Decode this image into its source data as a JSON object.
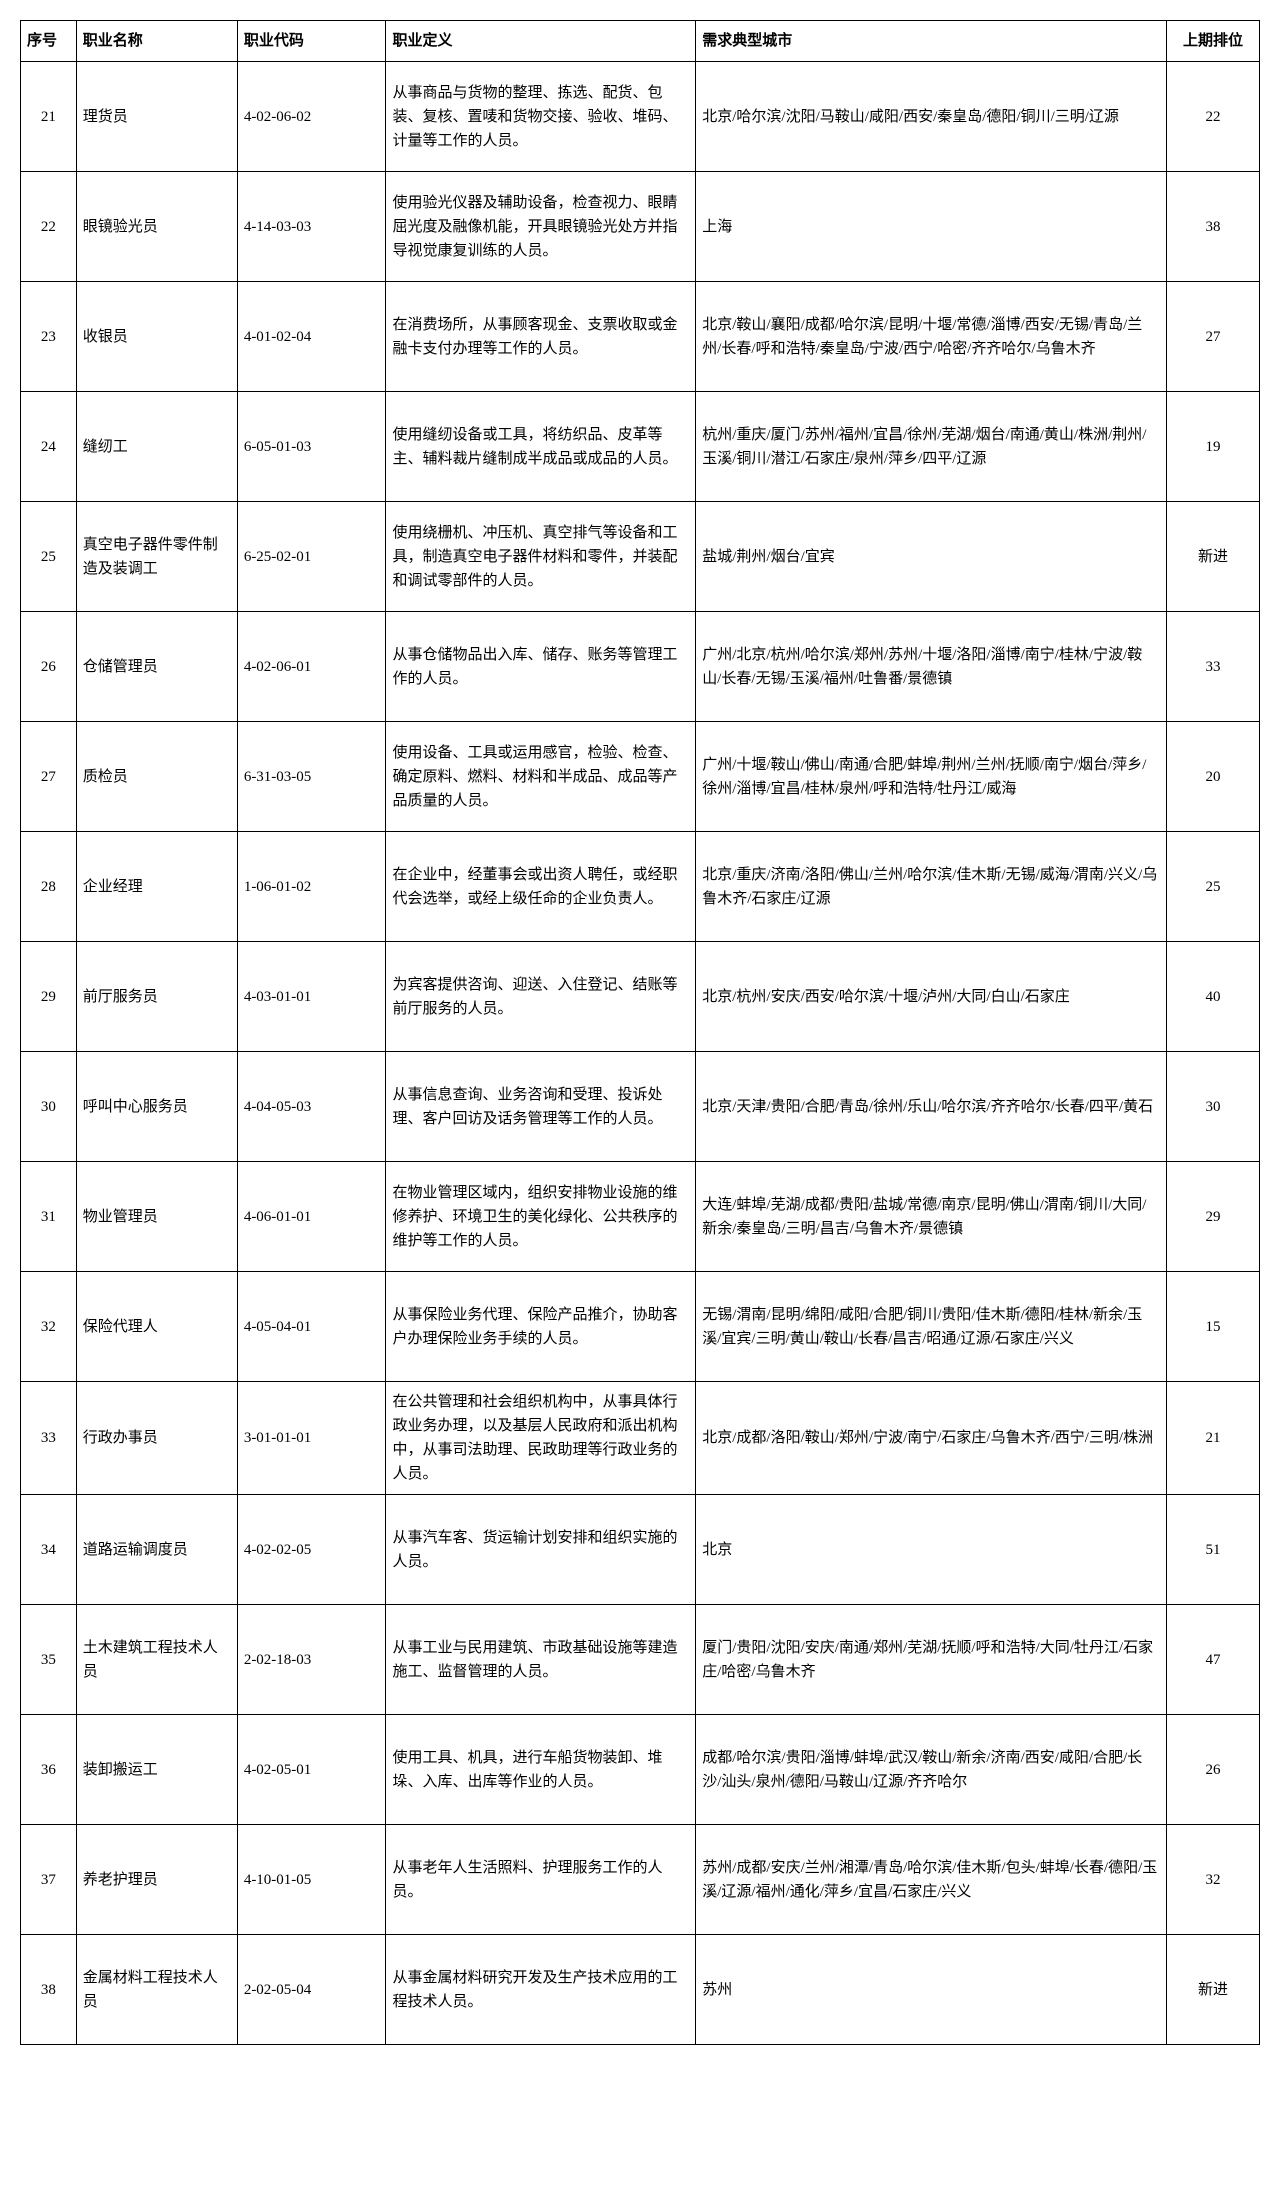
{
  "columns": [
    "序号",
    "职业名称",
    "职业代码",
    "职业定义",
    "需求典型城市",
    "上期排位"
  ],
  "rows": [
    {
      "idx": "21",
      "name": "理货员",
      "code": "4-02-06-02",
      "def": "从事商品与货物的整理、拣选、配货、包装、复核、置唛和货物交接、验收、堆码、计量等工作的人员。",
      "city": "北京/哈尔滨/沈阳/马鞍山/咸阳/西安/秦皇岛/德阳/铜川/三明/辽源",
      "rank": "22"
    },
    {
      "idx": "22",
      "name": "眼镜验光员",
      "code": "4-14-03-03",
      "def": "使用验光仪器及辅助设备，检查视力、眼睛屈光度及融像机能，开具眼镜验光处方并指导视觉康复训练的人员。",
      "city": "上海",
      "rank": "38"
    },
    {
      "idx": "23",
      "name": "收银员",
      "code": "4-01-02-04",
      "def": "在消费场所，从事顾客现金、支票收取或金融卡支付办理等工作的人员。",
      "city": "北京/鞍山/襄阳/成都/哈尔滨/昆明/十堰/常德/淄博/西安/无锡/青岛/兰州/长春/呼和浩特/秦皇岛/宁波/西宁/哈密/齐齐哈尔/乌鲁木齐",
      "rank": "27"
    },
    {
      "idx": "24",
      "name": "缝纫工",
      "code": "6-05-01-03",
      "def": "使用缝纫设备或工具，将纺织品、皮革等主、辅料裁片缝制成半成品或成品的人员。",
      "city": "杭州/重庆/厦门/苏州/福州/宜昌/徐州/芜湖/烟台/南通/黄山/株洲/荆州/玉溪/铜川/潜江/石家庄/泉州/萍乡/四平/辽源",
      "rank": "19"
    },
    {
      "idx": "25",
      "name": "真空电子器件零件制造及装调工",
      "code": "6-25-02-01",
      "def": "使用绕栅机、冲压机、真空排气等设备和工具，制造真空电子器件材料和零件，并装配和调试零部件的人员。",
      "city": "盐城/荆州/烟台/宜宾",
      "rank": "新进"
    },
    {
      "idx": "26",
      "name": "仓储管理员",
      "code": "4-02-06-01",
      "def": "从事仓储物品出入库、储存、账务等管理工作的人员。",
      "city": "广州/北京/杭州/哈尔滨/郑州/苏州/十堰/洛阳/淄博/南宁/桂林/宁波/鞍山/长春/无锡/玉溪/福州/吐鲁番/景德镇",
      "rank": "33"
    },
    {
      "idx": "27",
      "name": "质检员",
      "code": "6-31-03-05",
      "def": "使用设备、工具或运用感官，检验、检查、确定原料、燃料、材料和半成品、成品等产品质量的人员。",
      "city": "广州/十堰/鞍山/佛山/南通/合肥/蚌埠/荆州/兰州/抚顺/南宁/烟台/萍乡/徐州/淄博/宜昌/桂林/泉州/呼和浩特/牡丹江/威海",
      "rank": "20"
    },
    {
      "idx": "28",
      "name": "企业经理",
      "code": "1-06-01-02",
      "def": "在企业中，经董事会或出资人聘任，或经职代会选举，或经上级任命的企业负责人。",
      "city": "北京/重庆/济南/洛阳/佛山/兰州/哈尔滨/佳木斯/无锡/威海/渭南/兴义/乌鲁木齐/石家庄/辽源",
      "rank": "25"
    },
    {
      "idx": "29",
      "name": "前厅服务员",
      "code": "4-03-01-01",
      "def": "为宾客提供咨询、迎送、入住登记、结账等前厅服务的人员。",
      "city": "北京/杭州/安庆/西安/哈尔滨/十堰/泸州/大同/白山/石家庄",
      "rank": "40"
    },
    {
      "idx": "30",
      "name": "呼叫中心服务员",
      "code": "4-04-05-03",
      "def": "从事信息查询、业务咨询和受理、投诉处理、客户回访及话务管理等工作的人员。",
      "city": "北京/天津/贵阳/合肥/青岛/徐州/乐山/哈尔滨/齐齐哈尔/长春/四平/黄石",
      "rank": "30"
    },
    {
      "idx": "31",
      "name": "物业管理员",
      "code": "4-06-01-01",
      "def": "在物业管理区域内，组织安排物业设施的维修养护、环境卫生的美化绿化、公共秩序的维护等工作的人员。",
      "city": "大连/蚌埠/芜湖/成都/贵阳/盐城/常德/南京/昆明/佛山/渭南/铜川/大同/新余/秦皇岛/三明/昌吉/乌鲁木齐/景德镇",
      "rank": "29"
    },
    {
      "idx": "32",
      "name": "保险代理人",
      "code": "4-05-04-01",
      "def": "从事保险业务代理、保险产品推介，协助客户办理保险业务手续的人员。",
      "city": "无锡/渭南/昆明/绵阳/咸阳/合肥/铜川/贵阳/佳木斯/德阳/桂林/新余/玉溪/宜宾/三明/黄山/鞍山/长春/昌吉/昭通/辽源/石家庄/兴义",
      "rank": "15"
    },
    {
      "idx": "33",
      "name": "行政办事员",
      "code": "3-01-01-01",
      "def": "在公共管理和社会组织机构中，从事具体行政业务办理，以及基层人民政府和派出机构中，从事司法助理、民政助理等行政业务的人员。",
      "city": "北京/成都/洛阳/鞍山/郑州/宁波/南宁/石家庄/乌鲁木齐/西宁/三明/株洲",
      "rank": "21"
    },
    {
      "idx": "34",
      "name": "道路运输调度员",
      "code": "4-02-02-05",
      "def": "从事汽车客、货运输计划安排和组织实施的人员。",
      "city": "北京",
      "rank": "51"
    },
    {
      "idx": "35",
      "name": "土木建筑工程技术人员",
      "code": "2-02-18-03",
      "def": "从事工业与民用建筑、市政基础设施等建造施工、监督管理的人员。",
      "city": "厦门/贵阳/沈阳/安庆/南通/郑州/芜湖/抚顺/呼和浩特/大同/牡丹江/石家庄/哈密/乌鲁木齐",
      "rank": "47"
    },
    {
      "idx": "36",
      "name": "装卸搬运工",
      "code": "4-02-05-01",
      "def": "使用工具、机具，进行车船货物装卸、堆垛、入库、出库等作业的人员。",
      "city": "成都/哈尔滨/贵阳/淄博/蚌埠/武汉/鞍山/新余/济南/西安/咸阳/合肥/长沙/汕头/泉州/德阳/马鞍山/辽源/齐齐哈尔",
      "rank": "26"
    },
    {
      "idx": "37",
      "name": "养老护理员",
      "code": "4-10-01-05",
      "def": "从事老年人生活照料、护理服务工作的人员。",
      "city": "苏州/成都/安庆/兰州/湘潭/青岛/哈尔滨/佳木斯/包头/蚌埠/长春/德阳/玉溪/辽源/福州/通化/萍乡/宜昌/石家庄/兴义",
      "rank": "32"
    },
    {
      "idx": "38",
      "name": "金属材料工程技术人员",
      "code": "2-02-05-04",
      "def": "从事金属材料研究开发及生产技术应用的工程技术人员。",
      "city": "苏州",
      "rank": "新进"
    }
  ]
}
